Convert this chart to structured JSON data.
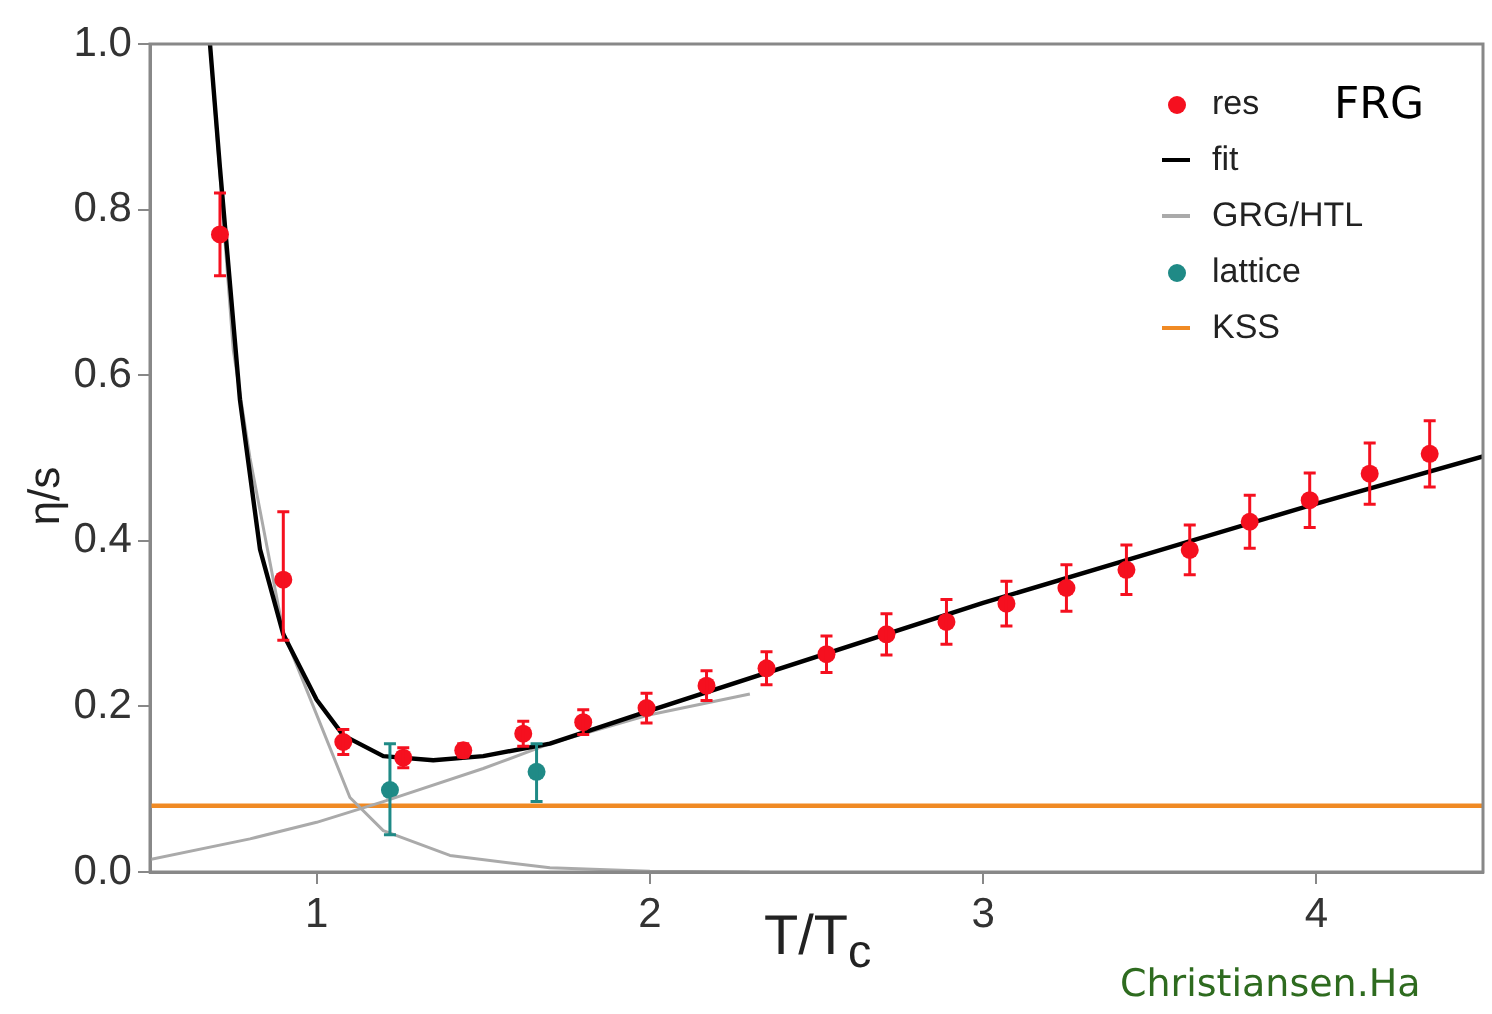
{
  "chart_data": {
    "type": "scatter",
    "xlabel": "T/T$_{c}$",
    "ylabel": "η/s",
    "xlim": [
      0.5,
      4.5
    ],
    "ylim": [
      0,
      1
    ],
    "xticks": [
      1,
      2,
      3,
      4
    ],
    "yticks": [
      {
        "value": 0,
        "label": "0.0"
      },
      {
        "value": 0.2,
        "label": "0.2"
      },
      {
        "value": 0.4,
        "label": "0.4"
      },
      {
        "value": 0.6,
        "label": "0.6"
      },
      {
        "value": 0.8,
        "label": "0.8"
      },
      {
        "value": 1,
        "label": "1.0"
      }
    ],
    "grid": false,
    "legend": "top right",
    "annotations": [
      "FRG",
      "Christiansen.Ha"
    ],
    "series": [
      {
        "name": "res",
        "marker": "circle",
        "color": "#f5101f",
        "x": [
          0.71,
          0.9,
          1.08,
          1.26,
          1.44,
          1.62,
          1.8,
          1.99,
          2.17,
          2.35,
          2.53,
          2.71,
          2.89,
          3.07,
          3.25,
          3.43,
          3.62,
          3.8,
          3.98,
          4.16,
          4.34
        ],
        "values": [
          0.77,
          0.353,
          0.157,
          0.138,
          0.147,
          0.167,
          0.181,
          0.198,
          0.225,
          0.246,
          0.263,
          0.287,
          0.302,
          0.324,
          0.343,
          0.365,
          0.389,
          0.423,
          0.449,
          0.481,
          0.505
        ],
        "errors": [
          0.05,
          [
            0.28,
            0.435
          ],
          0.015,
          0.012,
          0.008,
          0.015,
          0.015,
          0.018,
          0.018,
          0.02,
          0.022,
          0.025,
          0.027,
          0.027,
          0.028,
          0.03,
          0.03,
          0.032,
          0.033,
          0.037,
          0.04
        ]
      },
      {
        "name": "fit",
        "type": "line",
        "marker": "none",
        "color": "#000000",
        "x": [
          0.68,
          0.71,
          0.77,
          0.83,
          0.9,
          1.0,
          1.08,
          1.2,
          1.35,
          1.5,
          1.7,
          2.0,
          3.0,
          4.0,
          4.5
        ],
        "values": [
          1.0,
          0.85,
          0.57,
          0.39,
          0.287,
          0.208,
          0.165,
          0.14,
          0.135,
          0.14,
          0.155,
          0.195,
          0.325,
          0.445,
          0.502
        ]
      },
      {
        "name": "GRG/HTL",
        "type": "line",
        "marker": "none",
        "color": "#aaaaaa",
        "x": [
          0.68,
          0.75,
          0.8,
          0.9,
          1.0,
          1.1,
          1.2,
          1.4,
          1.7,
          2.0,
          2.3
        ],
        "values": [
          1.0,
          0.63,
          0.5,
          0.29,
          0.19,
          0.09,
          0.05,
          0.02,
          0.005,
          0.001,
          0
        ]
      },
      {
        "type": "line",
        "marker": "none",
        "color": "#aaaaaa",
        "x": [
          0.5,
          0.8,
          1.0,
          1.2,
          1.5,
          1.7,
          2.0,
          2.3
        ],
        "values": [
          0.015,
          0.04,
          0.06,
          0.085,
          0.125,
          0.155,
          0.19,
          0.215
        ]
      },
      {
        "name": "lattice",
        "marker": "circle",
        "color": "#1f8a86",
        "x": [
          1.22,
          1.66
        ],
        "values": [
          0.099,
          0.121
        ],
        "errors": [
          [
            0.045,
            0.155
          ],
          [
            0.085,
            0.155
          ]
        ]
      },
      {
        "name": "KSS",
        "type": "line",
        "marker": "none",
        "color": "#f08a24",
        "x": [
          0.5,
          4.5
        ],
        "values": [
          0.08,
          0.08
        ]
      }
    ]
  }
}
